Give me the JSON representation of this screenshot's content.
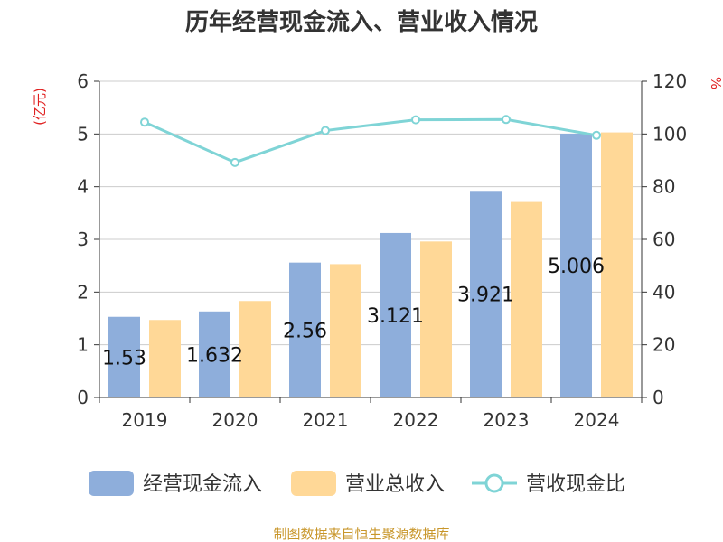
{
  "chart_data": {
    "type": "bar",
    "title": "历年经营现金流入、营业收入情况",
    "categories": [
      "2019",
      "2020",
      "2021",
      "2022",
      "2023",
      "2024"
    ],
    "y_left": {
      "unit": "(亿元)",
      "ylim": [
        0,
        6
      ],
      "ticks": [
        "0",
        "1",
        "2",
        "3",
        "4",
        "5",
        "6"
      ]
    },
    "y_right": {
      "unit": "%",
      "ylim": [
        0,
        120
      ],
      "ticks": [
        "0",
        "20",
        "40",
        "60",
        "80",
        "100",
        "120"
      ]
    },
    "series": [
      {
        "name": "经营现金流入",
        "kind": "bar",
        "axis": "left",
        "color": "#8eaedb",
        "values": [
          1.53,
          1.632,
          2.56,
          3.121,
          3.921,
          5.006
        ],
        "labels": [
          "1.53",
          "1.632",
          "2.56",
          "3.121",
          "3.921",
          "5.006"
        ]
      },
      {
        "name": "营业总收入",
        "kind": "bar",
        "axis": "left",
        "color": "#ffd897",
        "values": [
          1.47,
          1.83,
          2.53,
          2.96,
          3.71,
          5.03
        ]
      },
      {
        "name": "营收现金比",
        "kind": "line",
        "axis": "right",
        "color": "#7fd4d6",
        "values": [
          104.5,
          89.2,
          101.3,
          105.4,
          105.5,
          99.5
        ]
      }
    ],
    "grid": true,
    "legend": "bottom",
    "footer": "制图数据来自恒生聚源数据库"
  }
}
